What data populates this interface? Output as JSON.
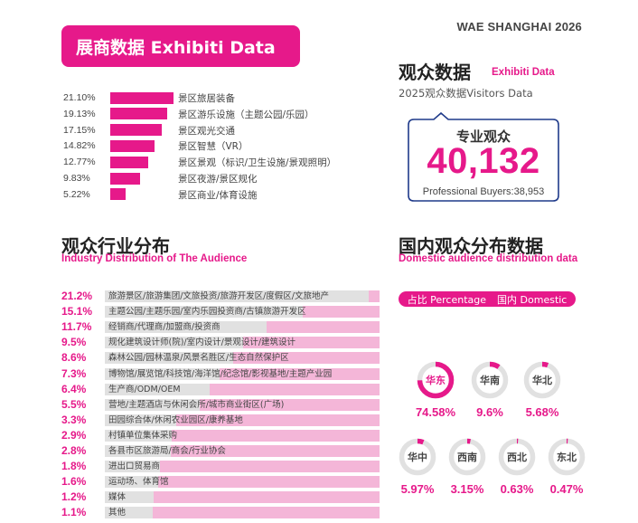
{
  "brand": "WAE SHANGHAI 2026",
  "exhibitor": {
    "title": "展商数据 Exhibiti Data"
  },
  "audience": {
    "title": "观众数据",
    "subtitle": "Exhibiti Data",
    "description": "2025观众数据Visitors Data",
    "professional_label": "专业观众",
    "total": "40,132",
    "buyers": "Professional Buyers:38,953"
  },
  "industry": {
    "title": "观众行业分布",
    "subtitle": "Industry Distribution of The Audience"
  },
  "domestic": {
    "title": "国内观众分布数据",
    "subtitle": "Domestic audience distribution data",
    "legend_pct": "占比 Percentage",
    "legend_domestic": "国内 Domestic"
  },
  "chart_data": [
    {
      "type": "bar",
      "orientation": "horizontal",
      "categories": [
        "景区旅居装备",
        "景区游乐设施（主题公园/乐园）",
        "景区观光交通",
        "景区智慧（VR）",
        "景区景观（标识/卫生设施/景观照明）",
        "景区夜游/景区规化",
        "景区商业/体育设施"
      ],
      "values": [
        21.1,
        19.13,
        17.15,
        14.82,
        12.77,
        9.83,
        5.22
      ],
      "value_labels": [
        "21.10%",
        "19.13%",
        "17.15%",
        "14.82%",
        "12.77%",
        "9.83%",
        "5.22%"
      ],
      "color": "#e6198a"
    },
    {
      "type": "bar",
      "orientation": "horizontal",
      "categories": [
        "旅游景区/旅游集团/文旅投资/旅游开发区/度假区/文旅地产",
        "主题公园/主题乐园/室内乐园投资商/古镇旅游开发区",
        "经销商/代理商/加盟商/投资商",
        "规化建筑设计师(院)/室内设计/景观设计/建筑设计",
        "森林公园/园林温泉/风景名胜区/生态自然保护区",
        "博物馆/展览馆/科技馆/海洋馆/纪念馆/影视基地/主题产业园",
        "生产商/ODM/OEM",
        "营地/主题酒店与休闲会所/城市商业街区(广场)",
        "田园综合体/休闲农业园区/康养基地",
        "村镇单位集体采购",
        "各县市区旅游局/商会/行业协会",
        "进出口贸易商",
        "运动场、体育馆",
        "媒体",
        "其他"
      ],
      "values": [
        21.2,
        15.1,
        11.7,
        9.5,
        8.6,
        7.3,
        6.4,
        5.5,
        3.3,
        2.9,
        2.8,
        1.8,
        1.6,
        1.2,
        1.1
      ],
      "value_labels": [
        "21.2%",
        "15.1%",
        "11.7%",
        "9.5%",
        "8.6%",
        "7.3%",
        "6.4%",
        "5.5%",
        "3.3%",
        "2.9%",
        "2.8%",
        "1.8%",
        "1.6%",
        "1.2%",
        "1.1%"
      ],
      "track_color": "#f4b6d8",
      "fill_color": "#e1e1e1"
    },
    {
      "type": "pie",
      "style": "donut-set",
      "categories": [
        "华东",
        "华南",
        "华北",
        "华中",
        "西南",
        "西北",
        "东北"
      ],
      "values": [
        74.58,
        9.6,
        5.68,
        5.97,
        3.15,
        0.63,
        0.47
      ],
      "value_labels": [
        "74.58%",
        "9.6%",
        "5.68%",
        "5.97%",
        "3.15%",
        "0.63%",
        "0.47%"
      ],
      "color": "#e6198a",
      "track_color": "#e1e1e1"
    }
  ]
}
